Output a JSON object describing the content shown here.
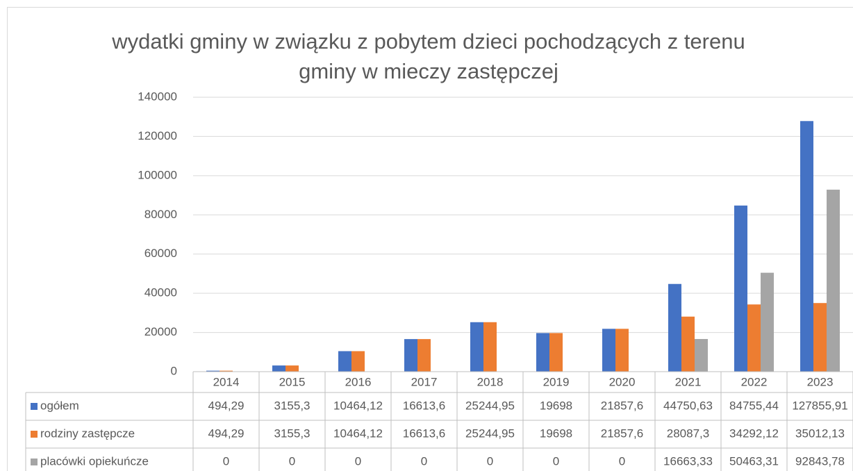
{
  "chart_data": {
    "type": "bar",
    "title": "wydatki gminy w związku z pobytem dzieci pochodzących z terenu gminy w mieczy zastępczej",
    "categories": [
      "2014",
      "2015",
      "2016",
      "2017",
      "2018",
      "2019",
      "2020",
      "2021",
      "2022",
      "2023"
    ],
    "series": [
      {
        "name": "ogółem",
        "color": "#4472c4",
        "values": [
          494.29,
          3155.3,
          10464.12,
          16613.6,
          25244.95,
          19698,
          21857.6,
          44750.63,
          84755.44,
          127855.91
        ],
        "value_labels": [
          "494,29",
          "3155,3",
          "10464,12",
          "16613,6",
          "25244,95",
          "19698",
          "21857,6",
          "44750,63",
          "84755,44",
          "127855,91"
        ]
      },
      {
        "name": "rodziny zastępcze",
        "color": "#ed7d31",
        "values": [
          494.29,
          3155.3,
          10464.12,
          16613.6,
          25244.95,
          19698,
          21857.6,
          28087.3,
          34292.12,
          35012.13
        ],
        "value_labels": [
          "494,29",
          "3155,3",
          "10464,12",
          "16613,6",
          "25244,95",
          "19698",
          "21857,6",
          "28087,3",
          "34292,12",
          "35012,13"
        ]
      },
      {
        "name": "placówki opiekuńcze",
        "color": "#a5a5a5",
        "values": [
          0,
          0,
          0,
          0,
          0,
          0,
          0,
          16663.33,
          50463.31,
          92843.78
        ],
        "value_labels": [
          "0",
          "0",
          "0",
          "0",
          "0",
          "0",
          "0",
          "16663,33",
          "50463,31",
          "92843,78"
        ]
      }
    ],
    "ylim": [
      0,
      140000
    ],
    "yticks": [
      0,
      20000,
      40000,
      60000,
      80000,
      100000,
      120000,
      140000
    ],
    "grid": true,
    "legend": "table"
  }
}
